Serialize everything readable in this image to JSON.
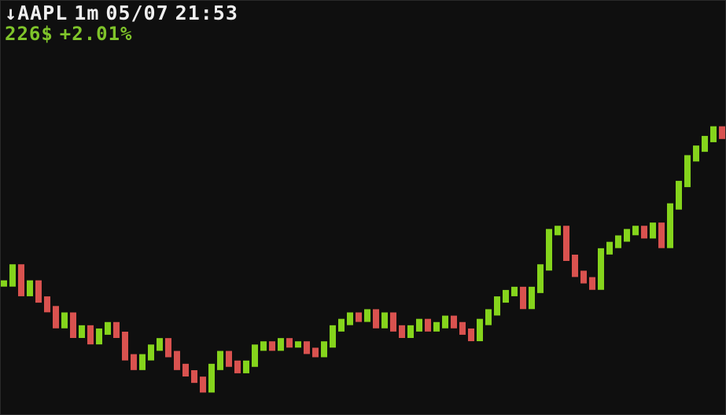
{
  "header": {
    "arrow": "↓",
    "symbol": "AAPL",
    "interval": "1m",
    "date": "05/07",
    "time": "21:53",
    "price": "226$",
    "change": "+2.01%"
  },
  "colors": {
    "background": "#0f0f0f",
    "up": "#85d41c",
    "down": "#d9524f",
    "text": "#f0f0f0",
    "price_text": "#7fc42a"
  },
  "chart_data": {
    "type": "line",
    "title": "",
    "xlabel": "",
    "ylabel": "",
    "grid": false,
    "ylim": [
      0,
      120
    ],
    "values": [
      40,
      45,
      37,
      40,
      35,
      32,
      27,
      30,
      24,
      26,
      22,
      25,
      27,
      24,
      17,
      14,
      17,
      20,
      22,
      18,
      14,
      12,
      10,
      7,
      14,
      18,
      15,
      13,
      15,
      20,
      21,
      20,
      22,
      21,
      21,
      19,
      18,
      21,
      26,
      28,
      30,
      29,
      31,
      27,
      30,
      26,
      24,
      26,
      28,
      26,
      27,
      29,
      27,
      25,
      23,
      28,
      31,
      35,
      37,
      38,
      33,
      38,
      45,
      56,
      57,
      48,
      43,
      41,
      39,
      50,
      52,
      54,
      56,
      57,
      55,
      58,
      52,
      64,
      71,
      79,
      82,
      85,
      88,
      86
    ]
  }
}
